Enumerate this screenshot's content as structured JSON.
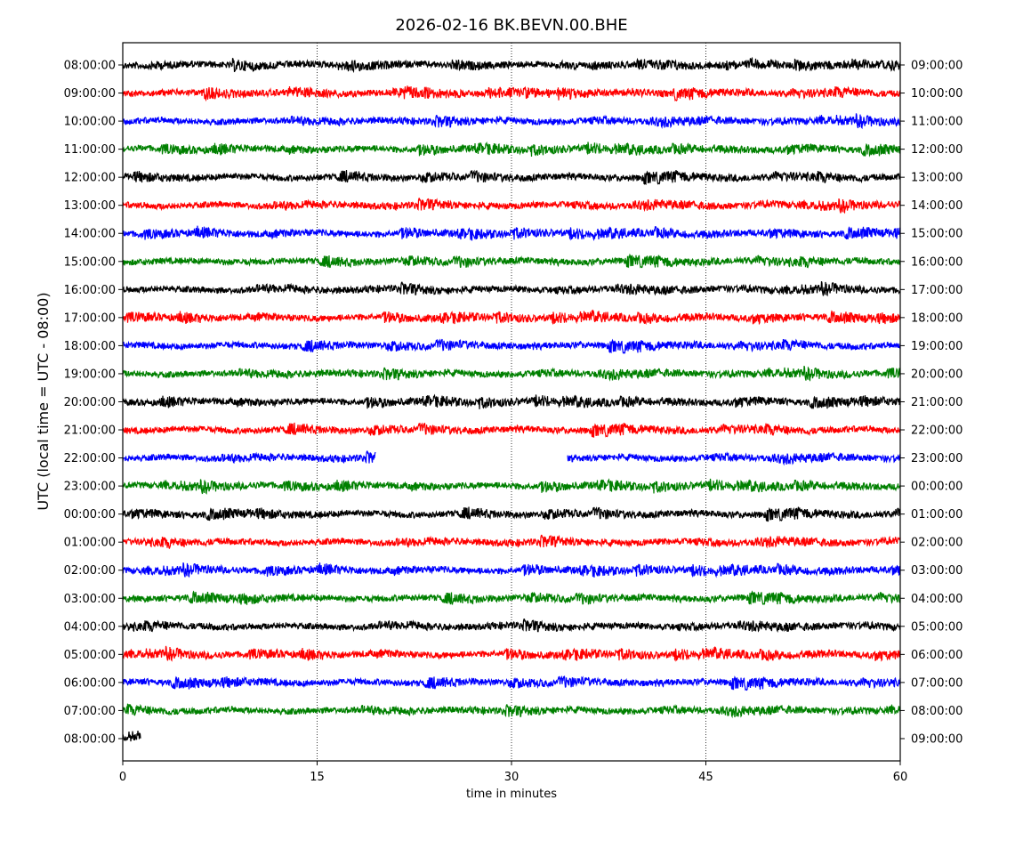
{
  "chart_data": {
    "type": "line",
    "title": "2026-02-16 BK.BEVN.00.BHE",
    "xlabel": "time in minutes",
    "ylabel": "UTC (local time = UTC - 08:00)",
    "xlim": [
      0,
      60
    ],
    "xticks": [
      "0",
      "15",
      "30",
      "45",
      "60"
    ],
    "xtick_values": [
      0,
      15,
      30,
      45,
      60
    ],
    "grid": "vertical dotted lines at 15, 30, 45",
    "left_labels": [
      "08:00:00",
      "09:00:00",
      "10:00:00",
      "11:00:00",
      "12:00:00",
      "13:00:00",
      "14:00:00",
      "15:00:00",
      "16:00:00",
      "17:00:00",
      "18:00:00",
      "19:00:00",
      "20:00:00",
      "21:00:00",
      "22:00:00",
      "23:00:00",
      "00:00:00",
      "01:00:00",
      "02:00:00",
      "03:00:00",
      "04:00:00",
      "05:00:00",
      "06:00:00",
      "07:00:00",
      "08:00:00"
    ],
    "right_labels": [
      "09:00:00",
      "10:00:00",
      "11:00:00",
      "12:00:00",
      "13:00:00",
      "14:00:00",
      "15:00:00",
      "16:00:00",
      "17:00:00",
      "18:00:00",
      "19:00:00",
      "20:00:00",
      "21:00:00",
      "22:00:00",
      "23:00:00",
      "00:00:00",
      "01:00:00",
      "02:00:00",
      "03:00:00",
      "04:00:00",
      "05:00:00",
      "06:00:00",
      "07:00:00",
      "08:00:00",
      "09:00:00"
    ],
    "color_cycle": [
      "#000000",
      "#ff0000",
      "#0000ff",
      "#008000"
    ],
    "series_segments": {
      "default": [
        [
          0,
          60
        ]
      ],
      "14": [
        [
          0,
          19.5
        ],
        [
          34.3,
          60
        ]
      ],
      "24": [
        [
          0,
          1.4
        ]
      ]
    }
  }
}
